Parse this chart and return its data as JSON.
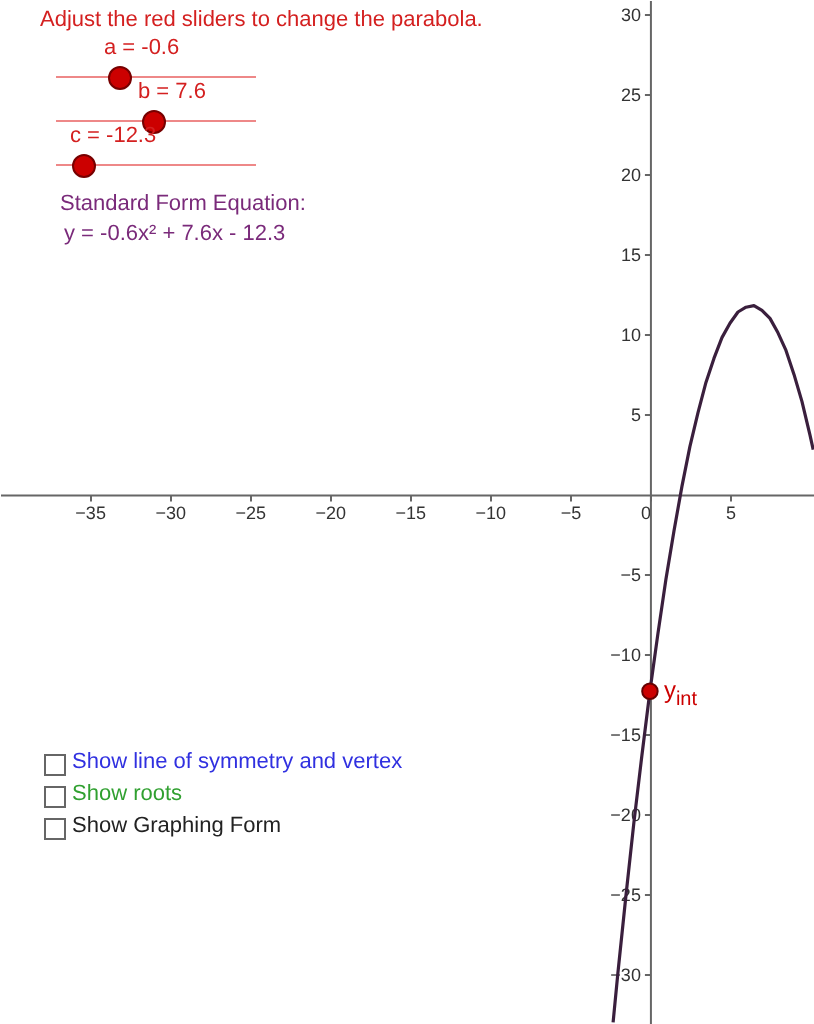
{
  "chart_data": {
    "type": "line",
    "title": "Adjust the red sliders to change the parabola.",
    "annotations": [
      "a = -0.6",
      "b = 7.6",
      "c = -12.3",
      "Standard Form Equation:",
      "y = -0.6x² + 7.6x - 12.3",
      "Show line of symmetry and vertex",
      "Show roots",
      "Show Graphing Form"
    ],
    "series": [
      {
        "color": "#3a1f3d",
        "x": [
          -2.3,
          -2,
          -1.5,
          -1,
          -0.5,
          0,
          0.5,
          1,
          1.5,
          2,
          2.5,
          3,
          3.5,
          4,
          4.5,
          5,
          5.5,
          6,
          6.5,
          7,
          7.5,
          8,
          8.5,
          9,
          9.5,
          10,
          10.2
        ],
        "values": [
          -33,
          -29.9,
          -25.1,
          -20.5,
          -16.3,
          -12.3,
          -8.7,
          -5.3,
          -2.3,
          0.5,
          3,
          5.1,
          7,
          8.5,
          9.8,
          10.7,
          11.4,
          11.7,
          11.8,
          11.5,
          11,
          10.1,
          9,
          7.5,
          5.8,
          3.7,
          2.8
        ]
      },
      {
        "type": "scatter",
        "name": "y$_{int}$",
        "color": "#cc0000",
        "x": [
          0
        ],
        "values": [
          -12.3
        ]
      }
    ],
    "xlim": [
      -40.6,
      10.25
    ],
    "ylim": [
      -33.1,
      30.9
    ],
    "xticks": [
      -35,
      -30,
      -25,
      -20,
      -15,
      -10,
      -5,
      0,
      5
    ],
    "yticks": [
      -30,
      -25,
      -20,
      -15,
      -10,
      -5,
      5,
      10,
      15,
      20,
      25,
      30
    ]
  }
}
